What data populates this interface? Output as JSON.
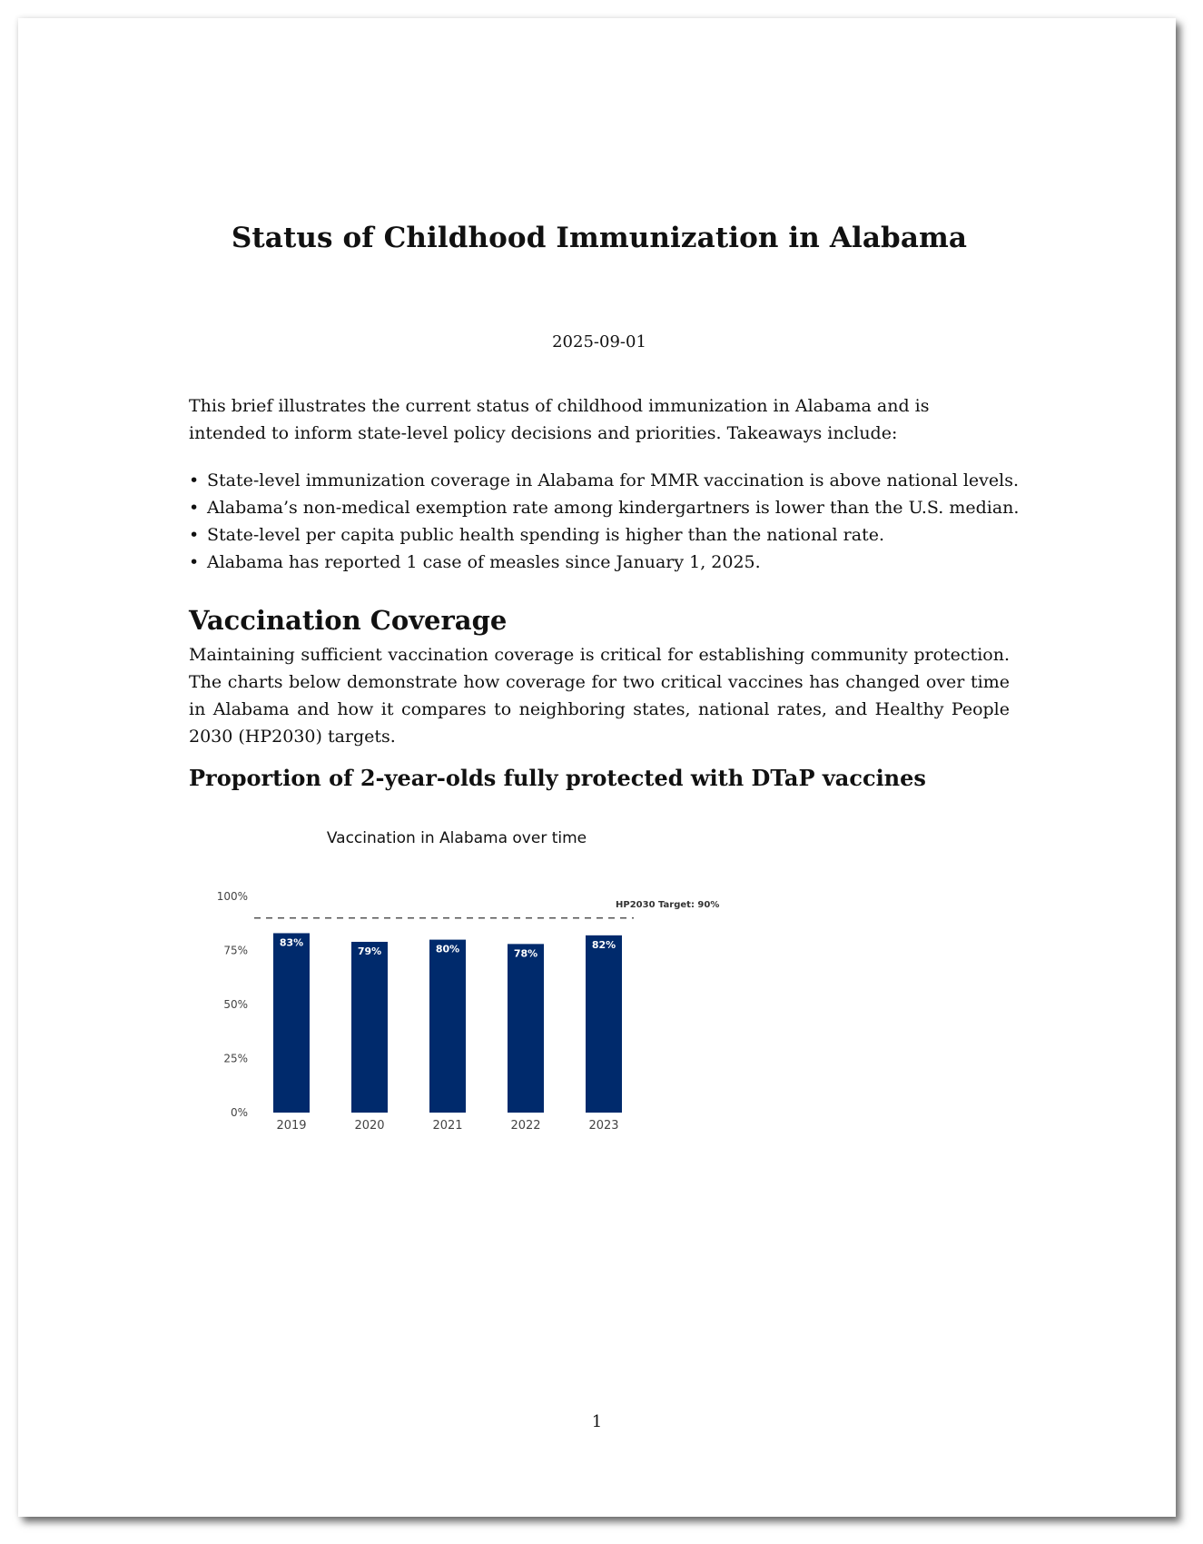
{
  "document": {
    "title": "Status of Childhood Immunization in Alabama",
    "date": "2025-09-01",
    "intro": "This brief illustrates the current status of childhood immunization in Alabama and is intended to inform state-level policy decisions and priorities. Takeaways include:",
    "takeaways": [
      "State-level immunization coverage in Alabama for MMR vaccination is above national levels.",
      "Alabama’s non-medical exemption rate among kindergartners is lower than the U.S. median.",
      "State-level per capita public health spending is higher than the national rate.",
      "Alabama has reported 1 case of measles since January 1, 2025."
    ],
    "bullet": "•",
    "section_heading": "Vaccination Coverage",
    "section_body": "Maintaining sufficient vaccination coverage is critical for establishing community protection. The charts below demonstrate how coverage for two critical vaccines has changed over time in Alabama and how it compares to neighboring states, national rates, and Healthy People 2030 (HP2030) targets.",
    "sub_heading": "Proportion of 2-year-olds fully protected with DTaP vaccines",
    "page_number": "1"
  },
  "chart_data": {
    "type": "bar",
    "title": "Vaccination in Alabama over time",
    "categories": [
      "2019",
      "2020",
      "2021",
      "2022",
      "2023"
    ],
    "values": [
      83,
      79,
      80,
      78,
      82
    ],
    "value_labels": [
      "83%",
      "79%",
      "80%",
      "78%",
      "82%"
    ],
    "ylim": [
      0,
      100
    ],
    "yticks": [
      0,
      25,
      50,
      75,
      100
    ],
    "ytick_labels": [
      "0%",
      "25%",
      "50%",
      "75%",
      "100%"
    ],
    "reference_line": {
      "value": 90,
      "label": "HP2030 Target: 90%",
      "style": "dashed"
    },
    "bar_color": "#002a6c",
    "label_color": "#ffffff",
    "axis_text_color": "#444444",
    "grid": false,
    "legend": "none"
  }
}
